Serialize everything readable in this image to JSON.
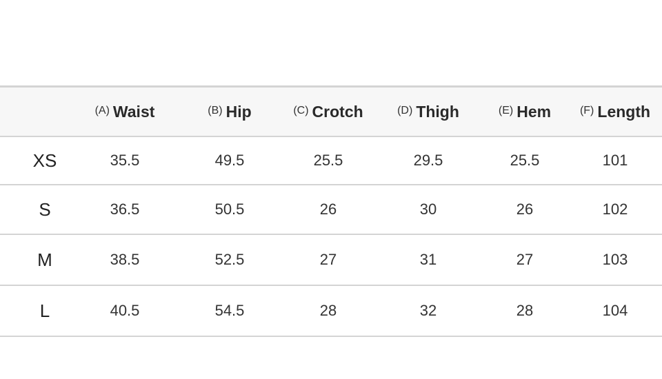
{
  "table": {
    "headers": [
      {
        "letter": "(A)",
        "name": "Waist"
      },
      {
        "letter": "(B)",
        "name": "Hip"
      },
      {
        "letter": "(C)",
        "name": "Crotch"
      },
      {
        "letter": "(D)",
        "name": "Thigh"
      },
      {
        "letter": "(E)",
        "name": "Hem"
      },
      {
        "letter": "(F)",
        "name": "Length"
      }
    ],
    "rows": [
      {
        "size": "XS",
        "values": [
          "35.5",
          "49.5",
          "25.5",
          "29.5",
          "25.5",
          "101"
        ]
      },
      {
        "size": "S",
        "values": [
          "36.5",
          "50.5",
          "26",
          "30",
          "26",
          "102"
        ]
      },
      {
        "size": "M",
        "values": [
          "38.5",
          "52.5",
          "27",
          "31",
          "27",
          "103"
        ]
      },
      {
        "size": "L",
        "values": [
          "40.5",
          "54.5",
          "28",
          "32",
          "28",
          "104"
        ]
      }
    ]
  }
}
